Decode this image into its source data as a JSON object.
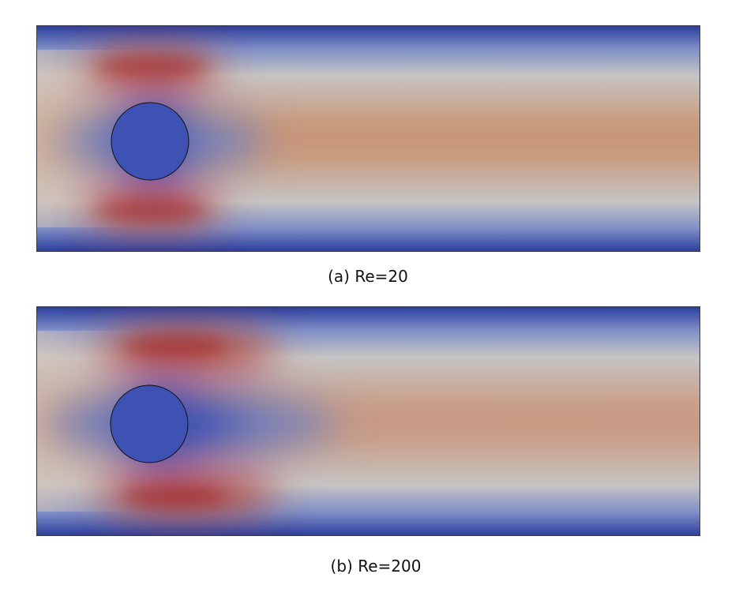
{
  "panels": [
    {
      "caption": "(a) Re=20"
    },
    {
      "caption": "(b) Re=200"
    }
  ],
  "colors": {
    "low": "#3a4fb3",
    "mid": "#c9c0b8",
    "mid_warm": "#c8987d",
    "high": "#a01c1c",
    "outline": "#111111"
  }
}
